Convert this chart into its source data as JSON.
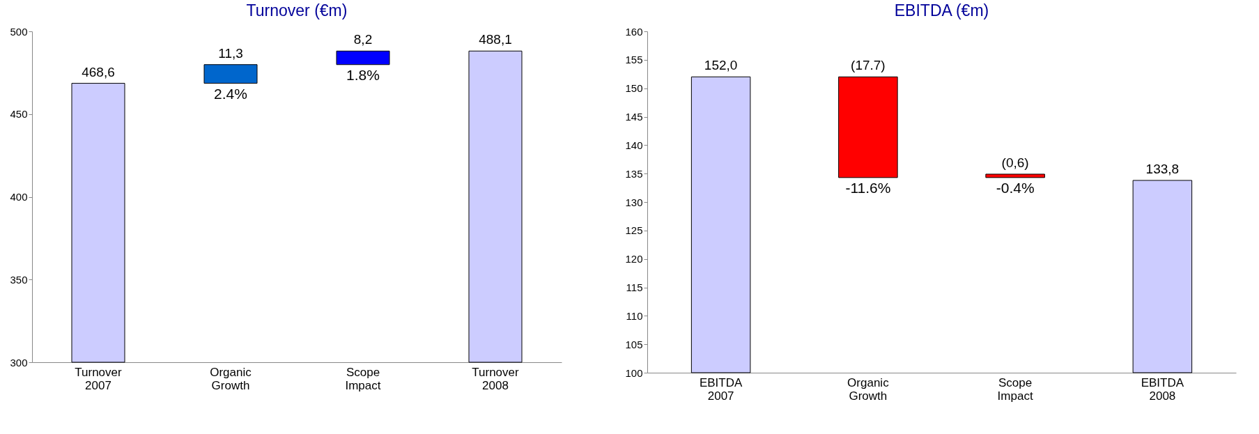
{
  "chart_data": [
    {
      "type": "bar",
      "title": "Turnover (€m)",
      "categories": [
        "Turnover 2007",
        "Organic Growth",
        "Scope Impact",
        "Turnover 2008"
      ],
      "values": [
        468.6,
        11.3,
        8.2,
        488.1
      ],
      "base": [
        null,
        468.6,
        479.9,
        null
      ],
      "colors": [
        "#ccccff",
        "#0066cc",
        "#0000ff",
        "#ccccff"
      ],
      "value_labels": [
        "468,6",
        "11,3",
        "8,2",
        "488,1"
      ],
      "ylim": [
        300,
        500
      ],
      "yticks": [
        300,
        350,
        400,
        450,
        500
      ],
      "grid": false,
      "legend": false,
      "annotations": [
        "2.4%",
        "1.8%"
      ]
    },
    {
      "type": "bar",
      "title": "EBITDA (€m)",
      "categories": [
        "EBITDA 2007",
        "Organic Growth",
        "Scope Impact",
        "EBITDA 2008"
      ],
      "values": [
        152.0,
        -17.7,
        -0.6,
        133.8
      ],
      "base": [
        null,
        152.0,
        134.9,
        null
      ],
      "colors": [
        "#ccccff",
        "#ff0000",
        "#ff0000",
        "#ccccff"
      ],
      "value_labels": [
        "152,0",
        "(17.7)",
        "(0,6)",
        "133,8"
      ],
      "ylim": [
        100,
        160
      ],
      "yticks": [
        100,
        105,
        110,
        115,
        120,
        125,
        130,
        135,
        140,
        145,
        150,
        155,
        160
      ],
      "grid": false,
      "legend": false,
      "annotations": [
        "-11.6%",
        "-0.4%"
      ]
    }
  ]
}
